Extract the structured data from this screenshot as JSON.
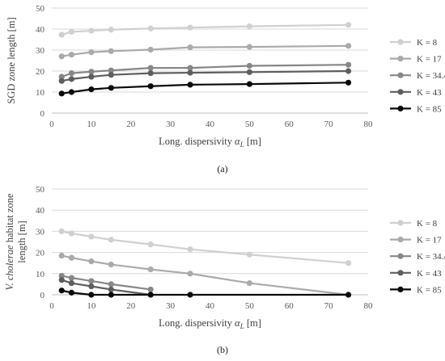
{
  "chart_data": [
    {
      "type": "line",
      "panel_label": "(a)",
      "title": "",
      "xlabel_prefix": "Long. dispersivity ",
      "xlabel_symbol": "α",
      "xlabel_sub": "L",
      "xlabel_suffix": " [m]",
      "ylabel": "SGD zone length [m]",
      "xlim": [
        0,
        80
      ],
      "ylim": [
        0,
        50
      ],
      "xticks": [
        0,
        10,
        20,
        30,
        40,
        50,
        60,
        70,
        80
      ],
      "yticks": [
        0,
        10,
        20,
        30,
        40,
        50
      ],
      "grid": "horizontal",
      "legend_position": "right",
      "x": [
        2.5,
        5,
        10,
        15,
        25,
        35,
        50,
        75
      ],
      "series": [
        {
          "name": "K = 8",
          "color": "#d0d0d0",
          "values": [
            37.3,
            38.7,
            39.2,
            39.7,
            40.3,
            40.7,
            41.3,
            42.0
          ]
        },
        {
          "name": "K = 17",
          "color": "#aaaaaa",
          "values": [
            27.0,
            27.8,
            29.0,
            29.5,
            30.2,
            31.3,
            31.5,
            32.0
          ]
        },
        {
          "name": "K = 34.4",
          "color": "#878787",
          "values": [
            17.3,
            19.0,
            19.7,
            20.3,
            21.5,
            21.5,
            22.5,
            23.0
          ]
        },
        {
          "name": "K = 43",
          "color": "#5e5e5e",
          "values": [
            15.3,
            16.2,
            17.3,
            18.2,
            19.0,
            19.2,
            19.5,
            20.0
          ]
        },
        {
          "name": "K = 85",
          "color": "#0a0a0a",
          "values": [
            9.3,
            10.0,
            11.3,
            12.0,
            12.8,
            13.5,
            13.8,
            14.5
          ]
        }
      ]
    },
    {
      "type": "line",
      "panel_label": "(b)",
      "title": "",
      "xlabel_prefix": "Long. dispersivity ",
      "xlabel_symbol": "α",
      "xlabel_sub": "L",
      "xlabel_suffix": " [m]",
      "ylabel_italic": "V. cholerae",
      "ylabel_line1_rest": " habitat zone",
      "ylabel_line2": "length [m]",
      "xlim": [
        0,
        80
      ],
      "ylim": [
        0,
        50
      ],
      "xticks": [
        0,
        10,
        20,
        30,
        40,
        50,
        60,
        70,
        80
      ],
      "yticks": [
        0,
        10,
        20,
        30,
        40,
        50
      ],
      "grid": "horizontal",
      "legend_position": "right",
      "series": [
        {
          "name": "K = 8",
          "color": "#d0d0d0",
          "x": [
            2.5,
            5,
            10,
            15,
            25,
            35,
            50,
            75
          ],
          "values": [
            30.0,
            29.0,
            27.5,
            26.0,
            23.8,
            21.5,
            19.0,
            15.0
          ]
        },
        {
          "name": "K = 17",
          "color": "#aaaaaa",
          "x": [
            2.5,
            5,
            10,
            15,
            25,
            35,
            50,
            75
          ],
          "values": [
            18.5,
            17.5,
            15.8,
            14.3,
            12.0,
            10.0,
            5.5,
            0.0
          ]
        },
        {
          "name": "K = 34.4",
          "color": "#878787",
          "x": [
            2.5,
            5,
            10,
            15,
            25
          ],
          "values": [
            9.0,
            8.0,
            6.5,
            5.0,
            2.5
          ]
        },
        {
          "name": "K = 43",
          "color": "#5e5e5e",
          "x": [
            2.5,
            5,
            10,
            15,
            25
          ],
          "values": [
            7.0,
            5.5,
            4.0,
            2.5,
            0.0
          ]
        },
        {
          "name": "K = 85",
          "color": "#0a0a0a",
          "x": [
            2.5,
            5,
            10,
            15,
            25,
            35,
            75
          ],
          "values": [
            2.0,
            1.0,
            0.0,
            0.0,
            0.0,
            0.0,
            0.0
          ]
        }
      ]
    }
  ]
}
